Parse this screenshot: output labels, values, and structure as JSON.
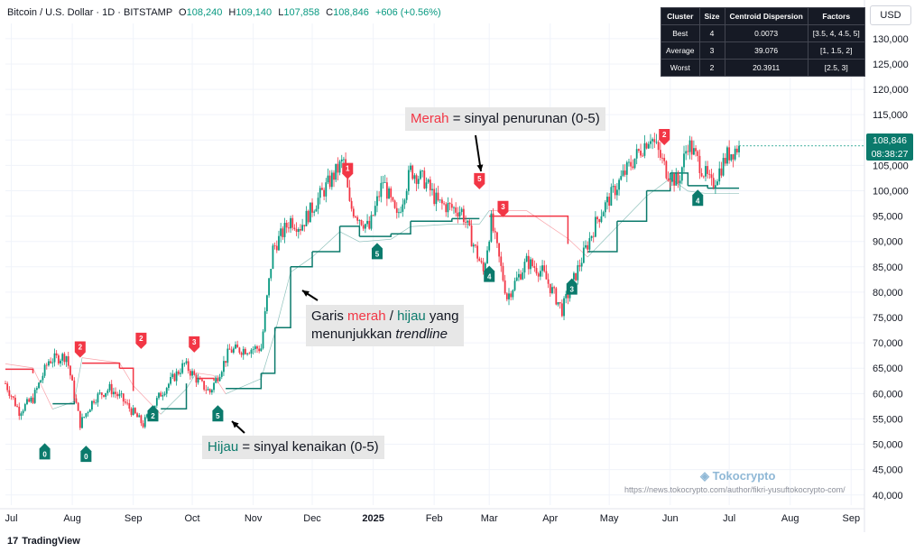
{
  "header": {
    "symbol": "Bitcoin / U.S. Dollar · 1D · BITSTAMP",
    "o_label": "O",
    "o_value": "108,240",
    "h_label": "H",
    "h_value": "109,140",
    "l_label": "L",
    "l_value": "107,858",
    "c_label": "C",
    "c_value": "108,846",
    "change": "+606 (+0.56%)"
  },
  "currency_button": "USD",
  "cluster_table": {
    "headers": [
      "Cluster",
      "Size",
      "Centroid Dispersion",
      "Factors"
    ],
    "rows": [
      [
        "Best",
        "4",
        "0.0073",
        "[3.5, 4, 4.5, 5]"
      ],
      [
        "Average",
        "3",
        "39.076",
        "[1, 1.5, 2]"
      ],
      [
        "Worst",
        "2",
        "20.3911",
        "[2.5, 3]"
      ]
    ]
  },
  "price_tag": {
    "price": "108,846",
    "countdown": "08:38:27"
  },
  "callouts": {
    "red_signal": {
      "pre": "Merah",
      "post": " = sinyal penurunan (0-5)"
    },
    "trendline": {
      "l1a": "Garis ",
      "l1b": "merah",
      "l1c": " / ",
      "l1d": "hijau",
      "l1e": " yang",
      "l2a": "menunjukkan ",
      "l2b": "trendline"
    },
    "green_signal": {
      "pre": "Hijau",
      "post": " = sinyal kenaikan (0-5)"
    }
  },
  "watermark": {
    "brand": "Tokocrypto",
    "url": "https://news.tokocrypto.com/author/fikri-yusuftokocrypto-com/"
  },
  "footer": {
    "brand": "TradingView"
  },
  "colors": {
    "up": "#089981",
    "down": "#f23645",
    "trend_up": "#0b7a6c",
    "trend_down": "#f23645"
  },
  "chart_data": {
    "type": "candlestick",
    "y_ticks": [
      40000,
      45000,
      50000,
      55000,
      60000,
      65000,
      70000,
      75000,
      80000,
      85000,
      90000,
      95000,
      100000,
      105000,
      110000,
      115000,
      120000,
      125000,
      130000
    ],
    "y_tick_labels": [
      "40,000",
      "45,000",
      "50,000",
      "55,000",
      "60,000",
      "65,000",
      "70,000",
      "75,000",
      "80,000",
      "85,000",
      "90,000",
      "95,000",
      "100,000",
      "105,000",
      "110,000",
      "115,000",
      "120,000",
      "125,000",
      "130,000"
    ],
    "ylim": [
      38000,
      133000
    ],
    "x_labels": [
      "Jul",
      "Aug",
      "Sep",
      "Oct",
      "Nov",
      "Dec",
      "2025",
      "Feb",
      "Mar",
      "Apr",
      "May",
      "Jun",
      "Jul",
      "Aug",
      "Sep"
    ],
    "x_label_dates": [
      "2024-07-01",
      "2024-08-01",
      "2024-09-01",
      "2024-10-01",
      "2024-11-01",
      "2024-12-01",
      "2025-01-01",
      "2025-02-01",
      "2025-03-01",
      "2025-04-01",
      "2025-05-01",
      "2025-06-01",
      "2025-07-01",
      "2025-08-01",
      "2025-09-01"
    ],
    "x_range": [
      "2024-06-28",
      "2025-09-05"
    ],
    "close_series": [
      [
        "2024-06-28",
        62000
      ],
      [
        "2024-07-05",
        56500
      ],
      [
        "2024-07-12",
        59000
      ],
      [
        "2024-07-20",
        66500
      ],
      [
        "2024-07-29",
        67500
      ],
      [
        "2024-08-05",
        54000
      ],
      [
        "2024-08-12",
        59000
      ],
      [
        "2024-08-20",
        61000
      ],
      [
        "2024-08-26",
        59000
      ],
      [
        "2024-09-06",
        53900
      ],
      [
        "2024-09-15",
        60000
      ],
      [
        "2024-09-27",
        65800
      ],
      [
        "2024-10-05",
        62000
      ],
      [
        "2024-10-10",
        60300
      ],
      [
        "2024-10-20",
        68500
      ],
      [
        "2024-11-05",
        69000
      ],
      [
        "2024-11-11",
        88500
      ],
      [
        "2024-11-20",
        94300
      ],
      [
        "2024-11-25",
        93000
      ],
      [
        "2024-12-05",
        99000
      ],
      [
        "2024-12-17",
        106000
      ],
      [
        "2024-12-20",
        97000
      ],
      [
        "2024-12-30",
        92500
      ],
      [
        "2025-01-06",
        102000
      ],
      [
        "2025-01-13",
        94500
      ],
      [
        "2025-01-20",
        104000
      ],
      [
        "2025-01-27",
        102000
      ],
      [
        "2025-02-03",
        97500
      ],
      [
        "2025-02-15",
        96000
      ],
      [
        "2025-02-26",
        84000
      ],
      [
        "2025-03-02",
        94000
      ],
      [
        "2025-03-10",
        79000
      ],
      [
        "2025-03-20",
        86000
      ],
      [
        "2025-03-28",
        84000
      ],
      [
        "2025-04-07",
        76500
      ],
      [
        "2025-04-15",
        84500
      ],
      [
        "2025-04-25",
        94500
      ],
      [
        "2025-05-08",
        103000
      ],
      [
        "2025-05-22",
        111000
      ],
      [
        "2025-05-30",
        104000
      ],
      [
        "2025-06-05",
        101500
      ],
      [
        "2025-06-10",
        109500
      ],
      [
        "2025-06-22",
        101000
      ],
      [
        "2025-06-30",
        107000
      ],
      [
        "2025-07-06",
        108846
      ]
    ],
    "signal_labels": [
      {
        "date": "2024-07-18",
        "price": 49500,
        "text": "0",
        "dir": "up"
      },
      {
        "date": "2024-08-05",
        "price": 67800,
        "text": "2",
        "dir": "down"
      },
      {
        "date": "2024-08-08",
        "price": 49000,
        "text": "0",
        "dir": "up"
      },
      {
        "date": "2024-09-05",
        "price": 69500,
        "text": "2",
        "dir": "down"
      },
      {
        "date": "2024-09-11",
        "price": 57000,
        "text": "2",
        "dir": "up"
      },
      {
        "date": "2024-10-02",
        "price": 68800,
        "text": "3",
        "dir": "down"
      },
      {
        "date": "2024-10-14",
        "price": 57000,
        "text": "5",
        "dir": "up"
      },
      {
        "date": "2024-12-19",
        "price": 103000,
        "text": "1",
        "dir": "down"
      },
      {
        "date": "2025-01-03",
        "price": 89000,
        "text": "5",
        "dir": "up"
      },
      {
        "date": "2025-02-24",
        "price": 101000,
        "text": "5",
        "dir": "down"
      },
      {
        "date": "2025-03-01",
        "price": 84500,
        "text": "4",
        "dir": "up"
      },
      {
        "date": "2025-03-08",
        "price": 95500,
        "text": "3",
        "dir": "down"
      },
      {
        "date": "2025-04-12",
        "price": 82000,
        "text": "3",
        "dir": "up"
      },
      {
        "date": "2025-05-29",
        "price": 109700,
        "text": "2",
        "dir": "down"
      },
      {
        "date": "2025-06-15",
        "price": 99500,
        "text": "4",
        "dir": "up"
      }
    ],
    "trendline": [
      [
        "2024-06-28",
        64800,
        "down"
      ],
      [
        "2024-07-12",
        64000,
        "down"
      ],
      [
        "2024-07-22",
        58000,
        "up"
      ],
      [
        "2024-08-02",
        59500,
        "up"
      ],
      [
        "2024-08-06",
        66000,
        "down"
      ],
      [
        "2024-08-25",
        65000,
        "down"
      ],
      [
        "2024-09-01",
        60500,
        "down"
      ],
      [
        "2024-09-15",
        57000,
        "up"
      ],
      [
        "2024-09-28",
        62000,
        "up"
      ],
      [
        "2024-10-03",
        63000,
        "down"
      ],
      [
        "2024-10-12",
        62500,
        "down"
      ],
      [
        "2024-10-18",
        61000,
        "up"
      ],
      [
        "2024-11-05",
        64000,
        "up"
      ],
      [
        "2024-11-12",
        73000,
        "up"
      ],
      [
        "2024-11-20",
        85000,
        "up"
      ],
      [
        "2024-12-01",
        88000,
        "up"
      ],
      [
        "2024-12-15",
        93000,
        "up"
      ],
      [
        "2024-12-25",
        91000,
        "up"
      ],
      [
        "2025-01-10",
        91500,
        "up"
      ],
      [
        "2025-01-20",
        94000,
        "up"
      ],
      [
        "2025-02-10",
        94500,
        "up"
      ],
      [
        "2025-02-24",
        94500,
        "up"
      ],
      [
        "2025-03-01",
        95000,
        "down"
      ],
      [
        "2025-03-20",
        95000,
        "down"
      ],
      [
        "2025-04-10",
        89500,
        "down"
      ],
      [
        "2025-04-20",
        88000,
        "up"
      ],
      [
        "2025-05-05",
        94000,
        "up"
      ],
      [
        "2025-05-20",
        100000,
        "up"
      ],
      [
        "2025-06-01",
        103500,
        "up"
      ],
      [
        "2025-06-10",
        101000,
        "up"
      ],
      [
        "2025-06-20",
        100500,
        "up"
      ],
      [
        "2025-07-06",
        100500,
        "up"
      ]
    ]
  }
}
